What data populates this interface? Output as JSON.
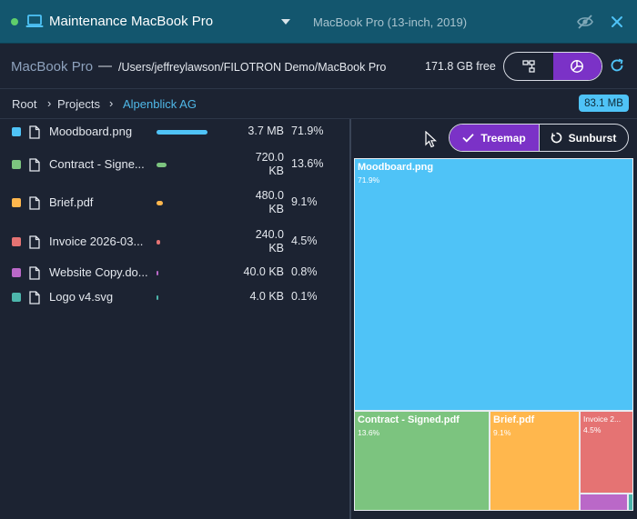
{
  "titlebar": {
    "title": "Maintenance MacBook Pro",
    "device_model": "MacBook Pro (13-inch, 2019)",
    "status_color": "#5fce6b"
  },
  "pathbar": {
    "device_name": "MacBook Pro",
    "separator": "—",
    "path": "/Users/jeffreylawson/FILOTRON Demo/MacBook Pro",
    "free_space": "171.8 GB free"
  },
  "breadcrumb": {
    "items": [
      "Root",
      "Projects",
      "Alpenblick AG"
    ],
    "separator": "›",
    "total_size": "83.1 MB"
  },
  "files": [
    {
      "name": "Moodboard.png",
      "size_line1": "3.7 MB",
      "size_line2": "",
      "percent": "71.9%",
      "fraction": 0.719,
      "color": "#4fc3f7"
    },
    {
      "name": "Contract - Signe...",
      "size_line1": "720.0",
      "size_line2": "KB",
      "percent": "13.6%",
      "fraction": 0.136,
      "color": "#7cc47f"
    },
    {
      "name": "Brief.pdf",
      "size_line1": "480.0",
      "size_line2": "KB",
      "percent": "9.1%",
      "fraction": 0.091,
      "color": "#ffb74d"
    },
    {
      "name": "Invoice 2026-03...",
      "size_line1": "240.0",
      "size_line2": "KB",
      "percent": "4.5%",
      "fraction": 0.045,
      "color": "#e57373"
    },
    {
      "name": "Website Copy.do...",
      "size_line1": "40.0 KB",
      "size_line2": "",
      "percent": "0.8%",
      "fraction": 0.008,
      "color": "#ba68c8"
    },
    {
      "name": "Logo v4.svg",
      "size_line1": "4.0 KB",
      "size_line2": "",
      "percent": "0.1%",
      "fraction": 0.001,
      "color": "#4db6ac"
    }
  ],
  "view_switch": {
    "treemap_label": "Treemap",
    "sunburst_label": "Sunburst",
    "active": "Treemap",
    "accent": "#7b32c7"
  },
  "treemap": {
    "tiles": [
      {
        "name": "Moodboard.png",
        "pct": "71.9%",
        "color": "#4fc3f7"
      },
      {
        "name": "Contract - Signed.pdf",
        "pct": "13.6%",
        "color": "#7cc47f"
      },
      {
        "name": "Brief.pdf",
        "pct": "9.1%",
        "color": "#ffb74d"
      },
      {
        "name": "Invoice 2...",
        "pct": "4.5%",
        "color": "#e57373"
      },
      {
        "name": "",
        "pct": "",
        "color": "#ba68c8"
      },
      {
        "name": "",
        "pct": "",
        "color": "#4db6ac"
      }
    ]
  }
}
